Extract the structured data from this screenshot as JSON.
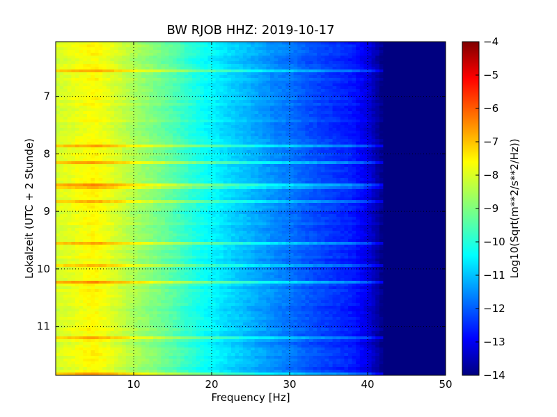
{
  "chart_data": {
    "type": "heatmap",
    "title": "BW RJOB HHZ: 2019-10-17",
    "xlabel": "Frequency [Hz]",
    "ylabel": "Lokalzeit (UTC + 2 Stunde)",
    "xlim": [
      0,
      50
    ],
    "ylim": [
      11.85,
      6.05
    ],
    "y_inverted": true,
    "x_ticks": [
      10,
      20,
      30,
      40,
      50
    ],
    "y_ticks": [
      7,
      8,
      9,
      10,
      11
    ],
    "grid": true,
    "colormap": "jet",
    "colorbar": {
      "label": "Log10(Sqrt(m**2/s**2/Hz))",
      "range": [
        -14,
        -4
      ],
      "ticks": [
        -4,
        -5,
        -6,
        -7,
        -8,
        -9,
        -10,
        -11,
        -12,
        -13,
        -14
      ]
    },
    "spectrum_profile": {
      "frequency_hz": [
        0,
        2,
        5,
        8,
        10,
        12,
        15,
        18,
        20,
        22,
        25,
        28,
        30,
        32,
        35,
        38,
        40,
        42,
        45,
        50
      ],
      "log10_value": [
        -8.2,
        -8.0,
        -7.7,
        -8.2,
        -8.6,
        -8.9,
        -9.4,
        -10.0,
        -10.3,
        -10.6,
        -11.0,
        -11.4,
        -11.6,
        -11.9,
        -12.2,
        -12.5,
        -13.0,
        -14.0,
        -14.0,
        -14.0
      ]
    },
    "annotations": []
  }
}
